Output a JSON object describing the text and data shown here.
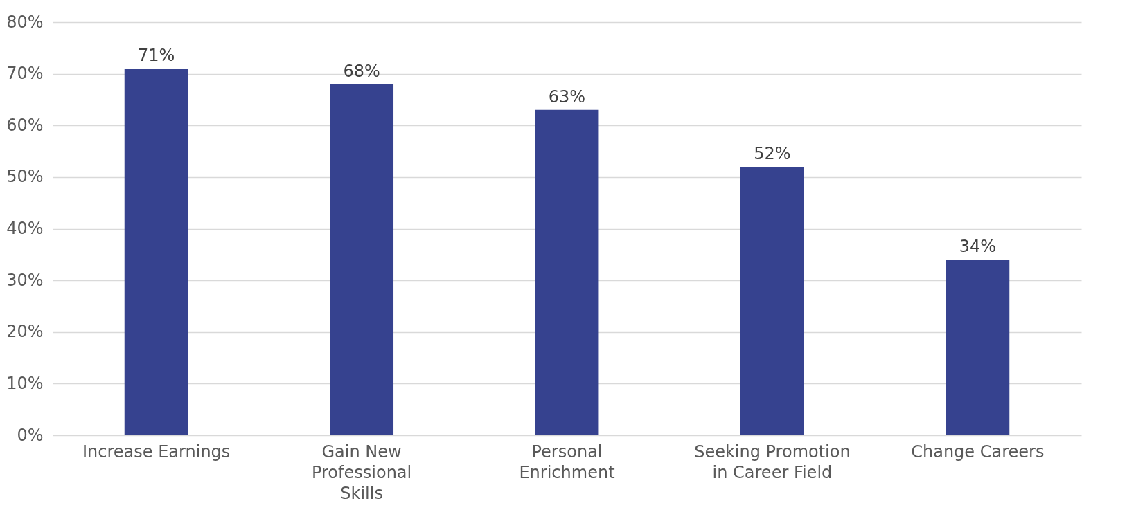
{
  "chart_data": {
    "type": "bar",
    "categories": [
      "Increase Earnings",
      "Gain New Professional Skills",
      "Personal Enrichment",
      "Seeking Promotion in Career Field",
      "Change Careers"
    ],
    "values": [
      71,
      68,
      63,
      52,
      34
    ],
    "value_labels": [
      "71%",
      "68%",
      "63%",
      "52%",
      "34%"
    ],
    "color": "#36428f",
    "ylim": [
      0,
      80
    ],
    "yticks": [
      {
        "value": 0,
        "label": "0%"
      },
      {
        "value": 10,
        "label": "10%"
      },
      {
        "value": 20,
        "label": "20%"
      },
      {
        "value": 30,
        "label": "30%"
      },
      {
        "value": 40,
        "label": "40%"
      },
      {
        "value": 50,
        "label": "50%"
      },
      {
        "value": 60,
        "label": "60%"
      },
      {
        "value": 70,
        "label": "70%"
      },
      {
        "value": 80,
        "label": "80%"
      }
    ],
    "grid": "y"
  }
}
